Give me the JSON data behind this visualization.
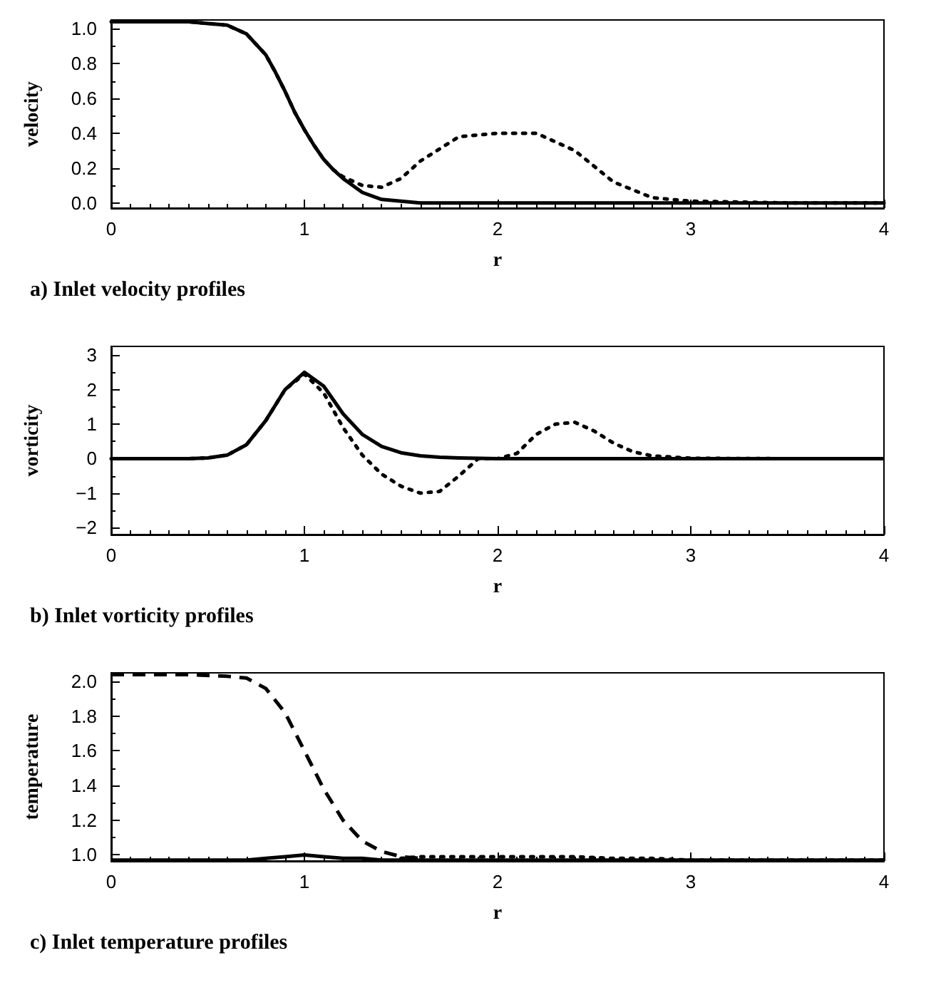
{
  "chart_data": [
    {
      "type": "line",
      "title": "a) Inlet velocity profiles",
      "xlabel": "r",
      "ylabel": "velocity",
      "xlim": [
        0,
        4
      ],
      "xticks": [
        0,
        1,
        2,
        3,
        4
      ],
      "ylim": [
        -0.03,
        1.05
      ],
      "yticks": [
        {
          "value": 0,
          "label": "0.0"
        },
        0.2,
        0.4,
        0.6,
        0.8,
        {
          "value": 1,
          "label": "1.0"
        }
      ],
      "grid": false,
      "marker": "none",
      "x": [
        0,
        0.2,
        0.4,
        0.5,
        0.6,
        0.7,
        0.8,
        0.85,
        0.9,
        0.95,
        1.0,
        1.05,
        1.1,
        1.15,
        1.2,
        1.3,
        1.4,
        1.5,
        1.6,
        1.8,
        2.0,
        2.2,
        2.4,
        2.6,
        2.8,
        3.0,
        3.5,
        4.0
      ],
      "series": [
        {
          "color": "#000000",
          "line_style": "dotted",
          "values": [
            1.04,
            1.04,
            1.04,
            1.03,
            1.02,
            0.97,
            0.85,
            0.75,
            0.64,
            0.52,
            0.42,
            0.33,
            0.25,
            0.19,
            0.15,
            0.1,
            0.09,
            0.14,
            0.24,
            0.38,
            0.4,
            0.4,
            0.3,
            0.12,
            0.03,
            0.01,
            0,
            0
          ]
        },
        {
          "color": "#000000",
          "line_style": "solid",
          "values": [
            1.04,
            1.04,
            1.04,
            1.03,
            1.02,
            0.97,
            0.85,
            0.75,
            0.64,
            0.52,
            0.42,
            0.33,
            0.25,
            0.19,
            0.14,
            0.06,
            0.02,
            0.01,
            0,
            0,
            0,
            0,
            0,
            0,
            0,
            0,
            0,
            0
          ]
        }
      ]
    },
    {
      "type": "line",
      "title": "b) Inlet vorticity profiles",
      "xlabel": "r",
      "ylabel": "vorticity",
      "xlim": [
        0,
        4
      ],
      "xticks": [
        0,
        1,
        2,
        3,
        4
      ],
      "ylim": [
        -2.2,
        3.25
      ],
      "yticks": [
        {
          "value": -2,
          "label": "−2"
        },
        {
          "value": -1,
          "label": "−1"
        },
        0,
        1,
        2,
        3
      ],
      "grid": false,
      "marker": "none",
      "x": [
        0,
        0.4,
        0.5,
        0.6,
        0.7,
        0.8,
        0.9,
        1.0,
        1.1,
        1.2,
        1.3,
        1.4,
        1.5,
        1.6,
        1.7,
        1.8,
        1.9,
        2.0,
        2.1,
        2.2,
        2.3,
        2.4,
        2.5,
        2.6,
        2.7,
        2.8,
        3.0,
        3.5,
        4.0
      ],
      "series": [
        {
          "color": "#000000",
          "line_style": "dotted",
          "values": [
            0,
            0,
            0.02,
            0.1,
            0.4,
            1.1,
            2.0,
            2.45,
            1.9,
            0.9,
            0.1,
            -0.45,
            -0.8,
            -1.0,
            -0.95,
            -0.5,
            0,
            0,
            0.15,
            0.7,
            1.0,
            1.05,
            0.8,
            0.45,
            0.2,
            0.08,
            0.01,
            0,
            0
          ]
        },
        {
          "color": "#000000",
          "line_style": "solid",
          "values": [
            0,
            0,
            0.02,
            0.1,
            0.4,
            1.1,
            2.0,
            2.5,
            2.1,
            1.3,
            0.7,
            0.35,
            0.17,
            0.08,
            0.04,
            0.02,
            0.01,
            0,
            0,
            0,
            0,
            0,
            0,
            0,
            0,
            0,
            0,
            0,
            0
          ]
        }
      ]
    },
    {
      "type": "line",
      "title": "c) Inlet temperature profiles",
      "xlabel": "r",
      "ylabel": "temperature",
      "xlim": [
        0,
        4
      ],
      "xticks": [
        0,
        1,
        2,
        3,
        4
      ],
      "ylim": [
        0.965,
        2.05
      ],
      "yticks": [
        {
          "value": 1,
          "label": "1.0"
        },
        1.2,
        1.4,
        1.6,
        1.8,
        {
          "value": 2,
          "label": "2.0"
        }
      ],
      "grid": false,
      "marker": "none",
      "x": [
        0,
        0.4,
        0.6,
        0.7,
        0.8,
        0.9,
        1.0,
        1.1,
        1.2,
        1.3,
        1.4,
        1.5,
        1.6,
        1.8,
        2.0,
        2.2,
        2.4,
        2.6,
        2.8,
        3.0,
        3.5,
        4.0
      ],
      "series": [
        {
          "color": "#000000",
          "line_style": "dashed",
          "values": [
            2.04,
            2.04,
            2.03,
            2.02,
            1.96,
            1.82,
            1.6,
            1.38,
            1.2,
            1.08,
            1.02,
            0.99,
            0.98,
            null,
            null,
            null,
            null,
            null,
            null,
            null,
            null,
            null
          ]
        },
        {
          "color": "#000000",
          "line_style": "dotted",
          "values": [
            null,
            null,
            null,
            null,
            null,
            null,
            null,
            null,
            null,
            null,
            null,
            0.98,
            0.99,
            0.99,
            0.99,
            0.99,
            0.99,
            0.98,
            0.98,
            0.97,
            0.97,
            0.97
          ]
        },
        {
          "color": "#000000",
          "line_style": "solid",
          "values": [
            0.97,
            0.97,
            0.97,
            0.97,
            0.98,
            0.99,
            1.0,
            0.99,
            0.98,
            0.98,
            0.97,
            0.97,
            0.97,
            0.97,
            0.97,
            0.97,
            0.97,
            0.97,
            0.97,
            0.97,
            0.97,
            0.97
          ]
        }
      ]
    }
  ]
}
